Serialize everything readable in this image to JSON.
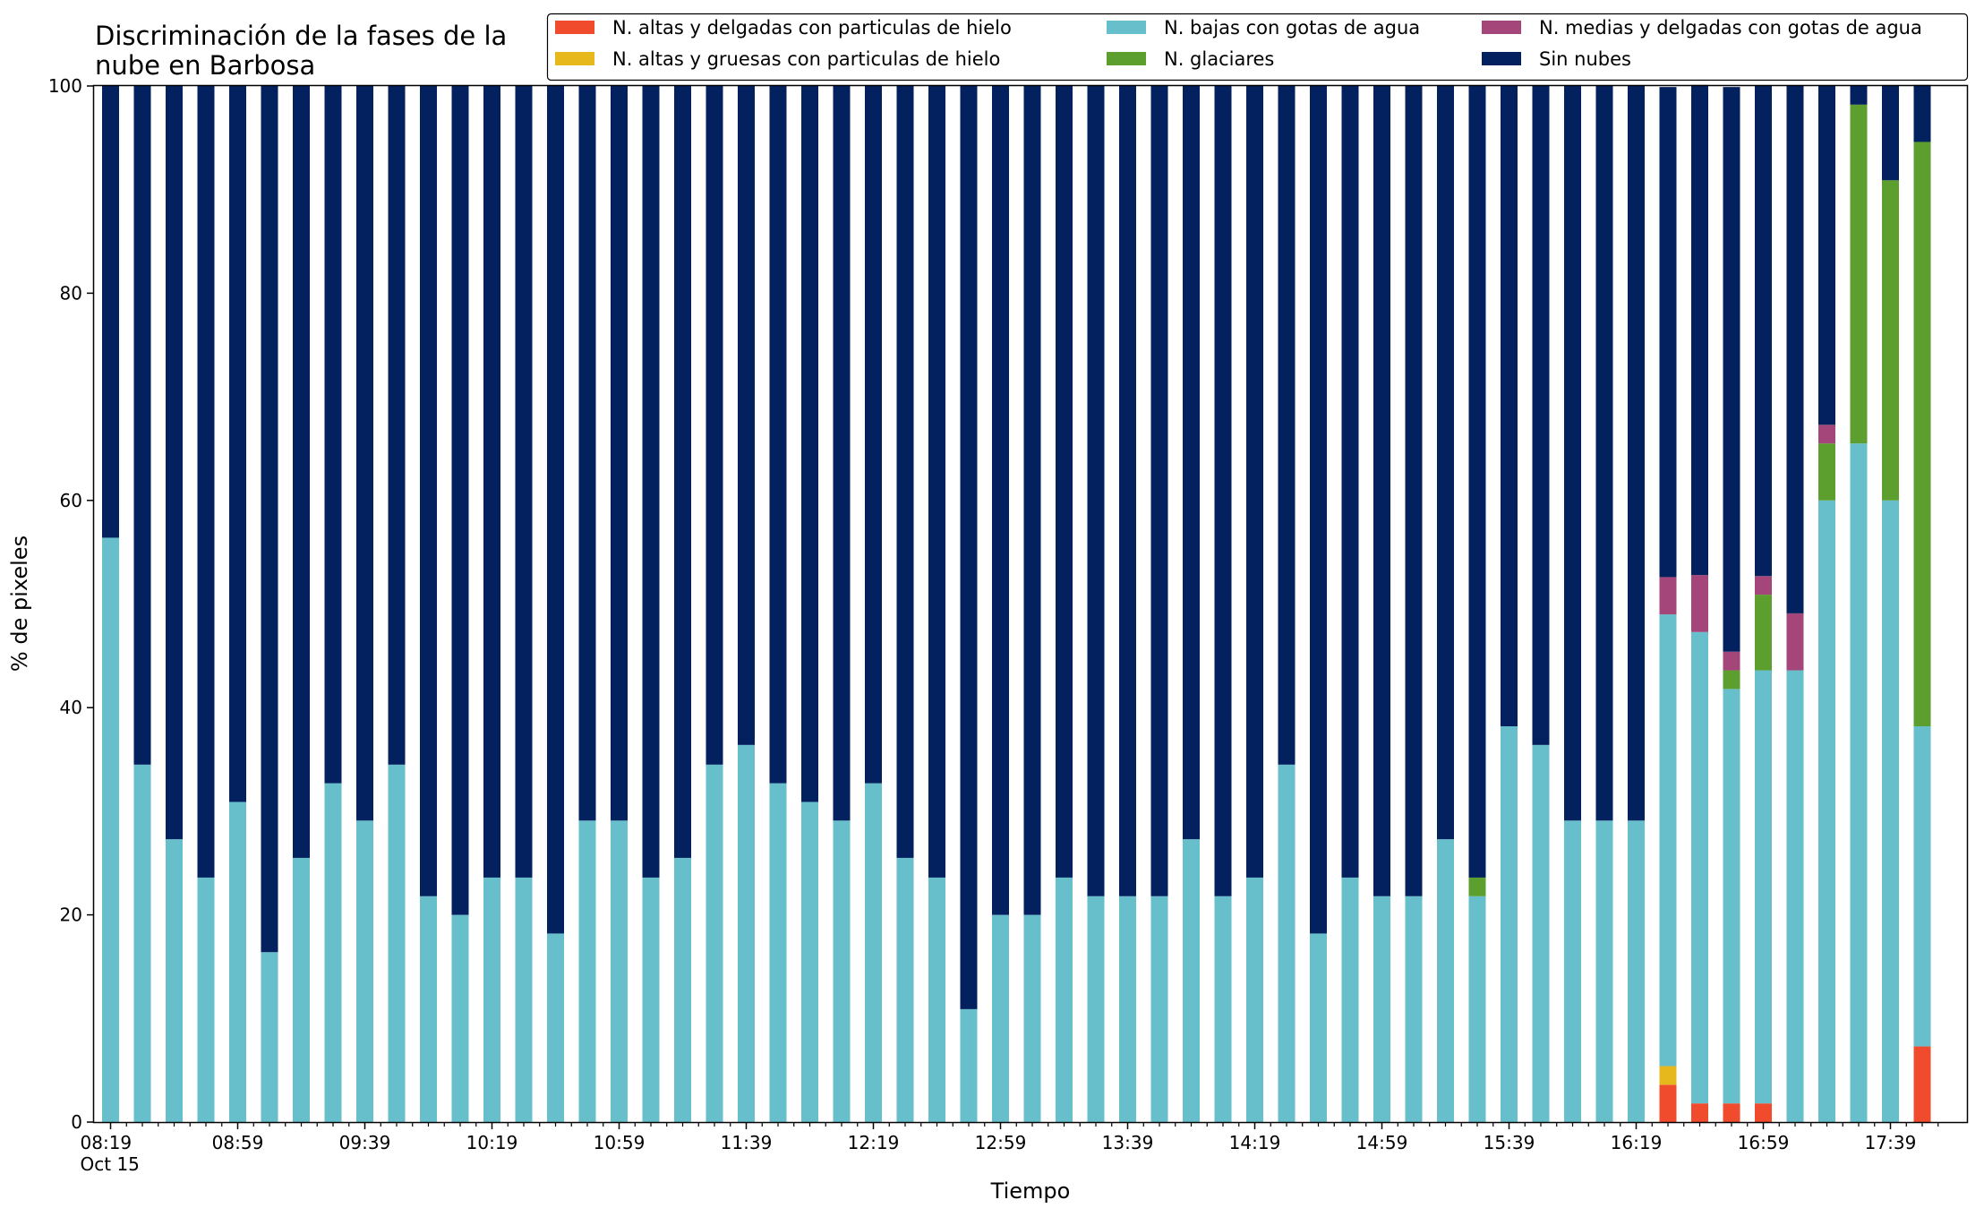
{
  "chart_data": {
    "type": "bar",
    "stacked": true,
    "title": "Discriminación de la fases de la\nnube en Barbosa",
    "xlabel": "Tiempo",
    "ylabel": "% de pixeles",
    "ylim": [
      0,
      100
    ],
    "yticks": [
      0,
      20,
      40,
      60,
      80,
      100
    ],
    "grid": false,
    "legend_position": "top-right",
    "legend_columns": 3,
    "x": [
      "08:19",
      "08:29",
      "08:39",
      "08:49",
      "08:59",
      "09:09",
      "09:19",
      "09:29",
      "09:39",
      "09:49",
      "09:59",
      "10:09",
      "10:19",
      "10:29",
      "10:39",
      "10:49",
      "10:59",
      "11:09",
      "11:19",
      "11:29",
      "11:39",
      "11:49",
      "11:59",
      "12:09",
      "12:19",
      "12:29",
      "12:39",
      "12:49",
      "12:59",
      "13:09",
      "13:19",
      "13:29",
      "13:39",
      "13:49",
      "13:59",
      "14:09",
      "14:19",
      "14:29",
      "14:39",
      "14:49",
      "14:59",
      "15:09",
      "15:19",
      "15:29",
      "15:39",
      "15:49",
      "15:59",
      "16:09",
      "16:19",
      "16:29",
      "16:39",
      "16:49",
      "16:59",
      "17:09",
      "17:19",
      "17:29",
      "17:39",
      "17:49"
    ],
    "xtick_labels": [
      {
        "x": "08:19",
        "lines": [
          "08:19",
          "Oct 15"
        ]
      },
      {
        "x": "08:59",
        "lines": [
          "08:59"
        ]
      },
      {
        "x": "09:39",
        "lines": [
          "09:39"
        ]
      },
      {
        "x": "10:19",
        "lines": [
          "10:19"
        ]
      },
      {
        "x": "10:59",
        "lines": [
          "10:59"
        ]
      },
      {
        "x": "11:39",
        "lines": [
          "11:39"
        ]
      },
      {
        "x": "12:19",
        "lines": [
          "12:19"
        ]
      },
      {
        "x": "12:59",
        "lines": [
          "12:59"
        ]
      },
      {
        "x": "13:39",
        "lines": [
          "13:39"
        ]
      },
      {
        "x": "14:19",
        "lines": [
          "14:19"
        ]
      },
      {
        "x": "14:59",
        "lines": [
          "14:59"
        ]
      },
      {
        "x": "15:39",
        "lines": [
          "15:39"
        ]
      },
      {
        "x": "16:19",
        "lines": [
          "16:19"
        ]
      },
      {
        "x": "16:59",
        "lines": [
          "16:59"
        ]
      },
      {
        "x": "17:39",
        "lines": [
          "17:39"
        ]
      }
    ],
    "series": [
      {
        "name": "N. altas y delgadas con particulas de hielo",
        "color": "#ef4b2c",
        "values": [
          0,
          0,
          0,
          0,
          0,
          0,
          0,
          0,
          0,
          0,
          0,
          0,
          0,
          0,
          0,
          0,
          0,
          0,
          0,
          0,
          0,
          0,
          0,
          0,
          0,
          0,
          0,
          0,
          0,
          0,
          0,
          0,
          0,
          0,
          0,
          0,
          0,
          0,
          0,
          0,
          0,
          0,
          0,
          0,
          0,
          0,
          0,
          0,
          0,
          3.6,
          1.8,
          1.8,
          1.8,
          0,
          0,
          0,
          0,
          7.3
        ]
      },
      {
        "name": "N. altas y gruesas con particulas de hielo",
        "color": "#e7b81b",
        "values": [
          0,
          0,
          0,
          0,
          0,
          0,
          0,
          0,
          0,
          0,
          0,
          0,
          0,
          0,
          0,
          0,
          0,
          0,
          0,
          0,
          0,
          0,
          0,
          0,
          0,
          0,
          0,
          0,
          0,
          0,
          0,
          0,
          0,
          0,
          0,
          0,
          0,
          0,
          0,
          0,
          0,
          0,
          0,
          0,
          0,
          0,
          0,
          0,
          0,
          1.8,
          0,
          0,
          0,
          0,
          0,
          0,
          0,
          0
        ]
      },
      {
        "name": "N. bajas con gotas de agua",
        "color": "#66bfcb",
        "values": [
          56.4,
          34.5,
          27.3,
          23.6,
          30.9,
          16.4,
          25.5,
          32.7,
          29.1,
          34.5,
          21.8,
          20.0,
          23.6,
          23.6,
          18.2,
          29.1,
          29.1,
          23.6,
          25.5,
          34.5,
          36.4,
          32.7,
          30.9,
          29.1,
          32.7,
          25.5,
          23.6,
          10.9,
          20.0,
          20.0,
          23.6,
          21.8,
          21.8,
          21.8,
          27.3,
          21.8,
          23.6,
          34.5,
          18.2,
          23.6,
          21.8,
          21.8,
          27.3,
          21.8,
          38.2,
          36.4,
          29.1,
          29.1,
          29.1,
          43.6,
          45.5,
          40.0,
          41.8,
          43.6,
          60.0,
          65.5,
          60.0,
          30.9
        ]
      },
      {
        "name": "N. glaciares",
        "color": "#5c9f2e",
        "values": [
          0,
          0,
          0,
          0,
          0,
          0,
          0,
          0,
          0,
          0,
          0,
          0,
          0,
          0,
          0,
          0,
          0,
          0,
          0,
          0,
          0,
          0,
          0,
          0,
          0,
          0,
          0,
          0,
          0,
          0,
          0,
          0,
          0,
          0,
          0,
          0,
          0,
          0,
          0,
          0,
          0,
          0,
          0,
          1.8,
          0,
          0,
          0,
          0,
          0,
          0,
          0,
          1.8,
          7.3,
          0,
          5.5,
          32.7,
          30.9,
          56.4
        ]
      },
      {
        "name": "N. medias y delgadas con gotas de agua",
        "color": "#a4467a",
        "values": [
          0,
          0,
          0,
          0,
          0,
          0,
          0,
          0,
          0,
          0,
          0,
          0,
          0,
          0,
          0,
          0,
          0,
          0,
          0,
          0,
          0,
          0,
          0,
          0,
          0,
          0,
          0,
          0,
          0,
          0,
          0,
          0,
          0,
          0,
          0,
          0,
          0,
          0,
          0,
          0,
          0,
          0,
          0,
          0,
          0,
          0,
          0,
          0,
          0,
          3.6,
          5.5,
          1.8,
          1.8,
          5.5,
          1.8,
          0,
          0,
          0
        ]
      },
      {
        "name": "Sin nubes",
        "color": "#03215f",
        "values": [
          43.6,
          65.5,
          72.7,
          76.4,
          69.1,
          83.6,
          74.5,
          67.3,
          70.9,
          65.5,
          78.2,
          80.0,
          76.4,
          76.4,
          81.8,
          70.9,
          70.9,
          76.4,
          74.5,
          65.5,
          63.6,
          67.3,
          69.1,
          70.9,
          67.3,
          74.5,
          76.4,
          89.1,
          80.0,
          80.0,
          76.4,
          78.2,
          78.2,
          78.2,
          72.7,
          78.2,
          76.4,
          65.5,
          81.8,
          76.4,
          78.2,
          78.2,
          72.7,
          76.4,
          61.8,
          63.6,
          70.9,
          70.9,
          70.9,
          47.3,
          47.3,
          54.5,
          47.3,
          50.9,
          32.7,
          1.8,
          9.1,
          5.5
        ]
      }
    ]
  }
}
